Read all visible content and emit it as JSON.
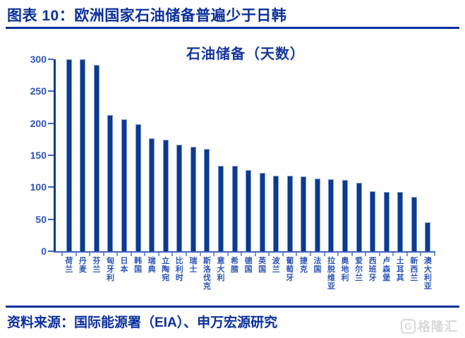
{
  "header": {
    "title": "图表 10：欧洲国家石油储备普遍少于日韩"
  },
  "chart_data": {
    "type": "bar",
    "title": "石油储备（天数）",
    "categories": [
      "荷兰",
      "丹麦",
      "芬兰",
      "匈牙利",
      "日本",
      "韩国",
      "瑞典",
      "立陶宛",
      "比利时",
      "瑞士",
      "斯洛伐克",
      "意大利",
      "希腊",
      "德国",
      "英国",
      "波兰",
      "葡萄牙",
      "捷克",
      "法国",
      "拉脱维亚",
      "奥地利",
      "爱尔兰",
      "西班牙",
      "卢森堡",
      "土耳其",
      "新西兰",
      "澳大利亚"
    ],
    "values": [
      300,
      300,
      291,
      213,
      206,
      198,
      176,
      174,
      167,
      163,
      160,
      134,
      133,
      127,
      122,
      118,
      118,
      117,
      114,
      113,
      111,
      107,
      94,
      93,
      93,
      85,
      45
    ],
    "xlabel": "",
    "ylabel": "",
    "ylim": [
      0,
      300
    ],
    "yticks": [
      0,
      50,
      100,
      150,
      200,
      250,
      300
    ],
    "grid": false,
    "legend": "none",
    "bar_color": "#0c3a8d",
    "bar_edge_color": "#7b97d4",
    "axis_label_color": "#2d55b8",
    "title_color": "#16379f"
  },
  "footer": {
    "source": "资料来源：国际能源署（EIA）、申万宏源研究",
    "watermark_icon": "G",
    "watermark_text": "格隆汇"
  },
  "colors": {
    "accent_navy": "#0b309c",
    "background": "#ffffff",
    "watermark_gray": "#d9d9d9"
  }
}
